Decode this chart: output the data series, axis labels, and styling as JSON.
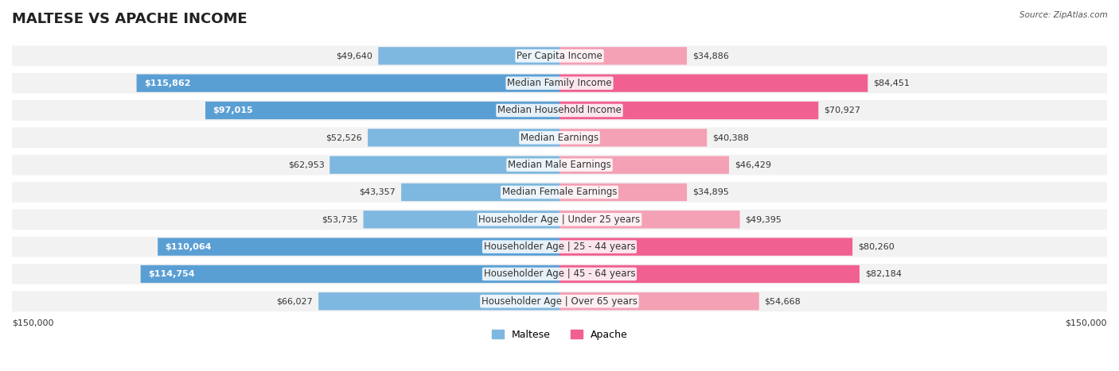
{
  "title": "MALTESE VS APACHE INCOME",
  "source": "Source: ZipAtlas.com",
  "categories": [
    "Per Capita Income",
    "Median Family Income",
    "Median Household Income",
    "Median Earnings",
    "Median Male Earnings",
    "Median Female Earnings",
    "Householder Age | Under 25 years",
    "Householder Age | 25 - 44 years",
    "Householder Age | 45 - 64 years",
    "Householder Age | Over 65 years"
  ],
  "maltese_values": [
    49640,
    115862,
    97015,
    52526,
    62953,
    43357,
    53735,
    110064,
    114754,
    66027
  ],
  "apache_values": [
    34886,
    84451,
    70927,
    40388,
    46429,
    34895,
    49395,
    80260,
    82184,
    54668
  ],
  "max_value": 150000,
  "maltese_color_bar": "#7eb8e0",
  "maltese_color_bar_highlight": "#5a9fd4",
  "apache_color_bar": "#f4a0b5",
  "apache_color_bar_highlight": "#f06090",
  "maltese_label_color": "#333333",
  "apache_label_color": "#333333",
  "bg_row_color": "#f0f0f0",
  "title_fontsize": 13,
  "label_fontsize": 8.5,
  "value_fontsize": 8,
  "legend_fontsize": 9,
  "axis_label_fontsize": 8
}
